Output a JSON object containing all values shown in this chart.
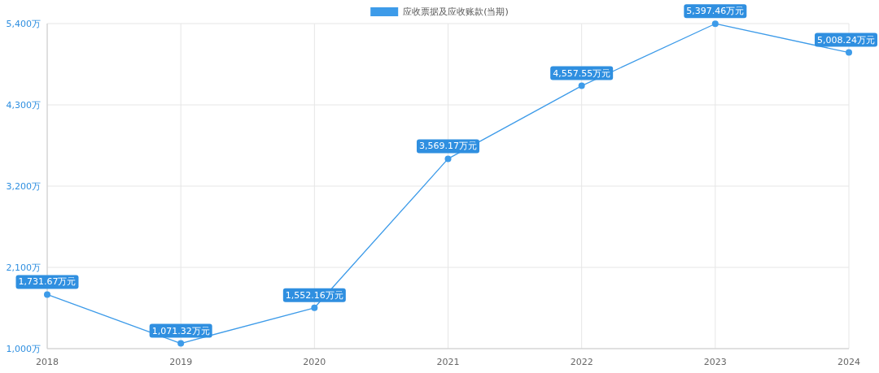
{
  "chart_data": {
    "type": "line",
    "categories": [
      "2018",
      "2019",
      "2020",
      "2021",
      "2022",
      "2023",
      "2024"
    ],
    "series": [
      {
        "name": "应收票据及应收账款(当期)",
        "color": "#3d9be9",
        "values": [
          1731.67,
          1071.32,
          1552.16,
          3569.17,
          4557.55,
          5397.46,
          5008.24
        ],
        "value_labels": [
          "1,731.67万元",
          "1,071.32万元",
          "1,552.16万元",
          "3,569.17万元",
          "4,557.55万元",
          "5,397.46万元",
          "5,008.24万元"
        ]
      }
    ],
    "ylim": [
      1000,
      5400
    ],
    "yticks": [
      {
        "value": 1000,
        "label": "1,000万"
      },
      {
        "value": 2100,
        "label": "2,100万"
      },
      {
        "value": 3200,
        "label": "3,200万"
      },
      {
        "value": 4300,
        "label": "4,300万"
      },
      {
        "value": 5400,
        "label": "5,400万"
      }
    ],
    "grid": true,
    "legend": "top",
    "marker": "circle",
    "line_style": "solid"
  }
}
